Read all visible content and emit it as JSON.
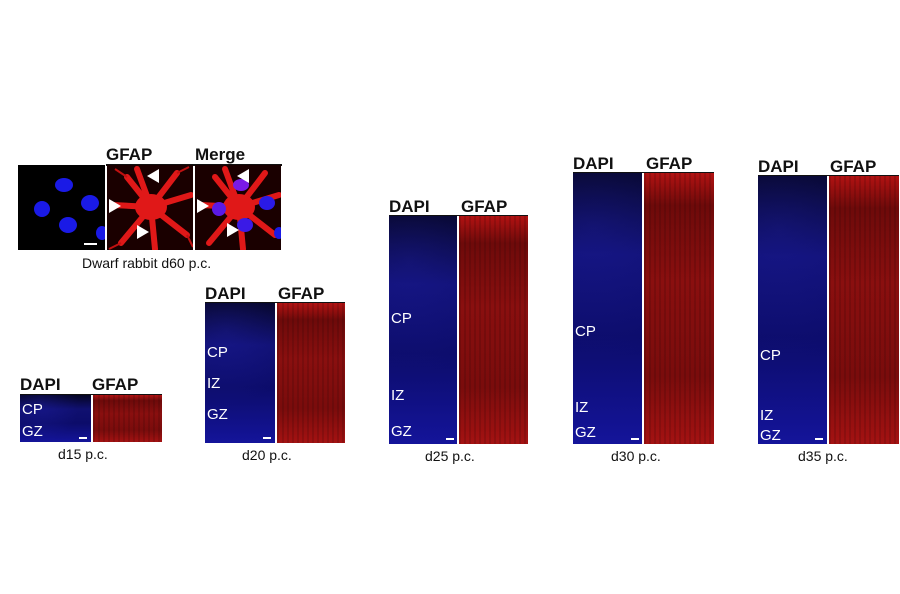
{
  "inset": {
    "header_gfap": "GFAP",
    "header_merge": "Merge",
    "caption": "Dwarf rabbit d60 p.c."
  },
  "panels": [
    {
      "id": "d15",
      "dapi": "DAPI",
      "gfap": "GFAP",
      "caption": "d15 p.c.",
      "labels": [
        "CP",
        "GZ"
      ]
    },
    {
      "id": "d20",
      "dapi": "DAPI",
      "gfap": "GFAP",
      "caption": "d20 p.c.",
      "labels": [
        "CP",
        "IZ",
        "GZ"
      ]
    },
    {
      "id": "d25",
      "dapi": "DAPI",
      "gfap": "GFAP",
      "caption": "d25 p.c.",
      "labels": [
        "CP",
        "IZ",
        "GZ"
      ]
    },
    {
      "id": "d30",
      "dapi": "DAPI",
      "gfap": "GFAP",
      "caption": "d30 p.c.",
      "labels": [
        "CP",
        "IZ",
        "GZ"
      ]
    },
    {
      "id": "d35",
      "dapi": "DAPI",
      "gfap": "GFAP",
      "caption": "d35 p.c.",
      "labels": [
        "CP",
        "IZ",
        "GZ"
      ]
    }
  ],
  "colors": {
    "dapi_blue": "#1414a0",
    "gfap_red": "#c81414",
    "background": "#ffffff"
  }
}
